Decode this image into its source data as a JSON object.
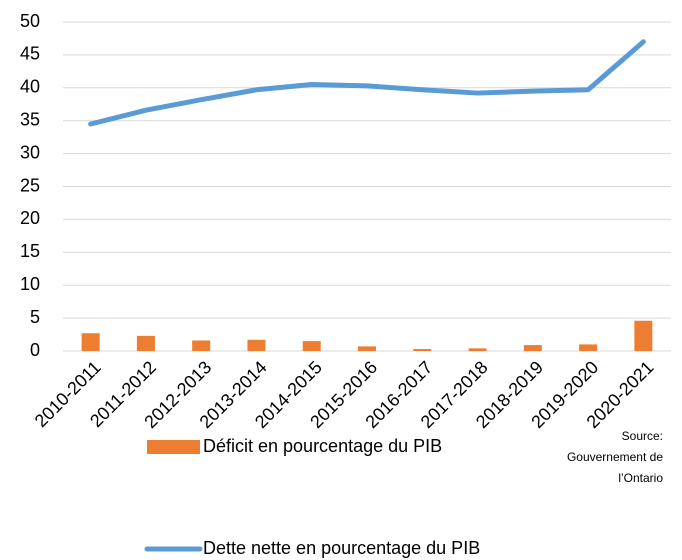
{
  "chart_data": {
    "type": "combo",
    "categories": [
      "2010-2011",
      "2011-2012",
      "2012-2013",
      "2013-2014",
      "2014-2015",
      "2015-2016",
      "2016-2017",
      "2017-2018",
      "2018-2019",
      "2019-2020",
      "2020-2021"
    ],
    "series": [
      {
        "name": "Déficit en pourcentage du PIB",
        "type": "bar",
        "color": "#ED7D31",
        "values": [
          2.7,
          2.3,
          1.6,
          1.7,
          1.5,
          0.7,
          0.3,
          0.4,
          0.9,
          1.0,
          4.6
        ]
      },
      {
        "name": "Dette nette en pourcentage du PIB",
        "type": "line",
        "color": "#5B9BD5",
        "values": [
          34.5,
          36.6,
          38.2,
          39.7,
          40.5,
          40.3,
          39.7,
          39.2,
          39.5,
          39.7,
          47.0
        ]
      }
    ],
    "ylim": [
      0,
      50
    ],
    "yticks": [
      0,
      5,
      10,
      15,
      20,
      25,
      30,
      35,
      40,
      45,
      50
    ],
    "grid": true,
    "annotations": [
      "Source:",
      "Gouvernement de",
      "l’Ontario"
    ]
  }
}
